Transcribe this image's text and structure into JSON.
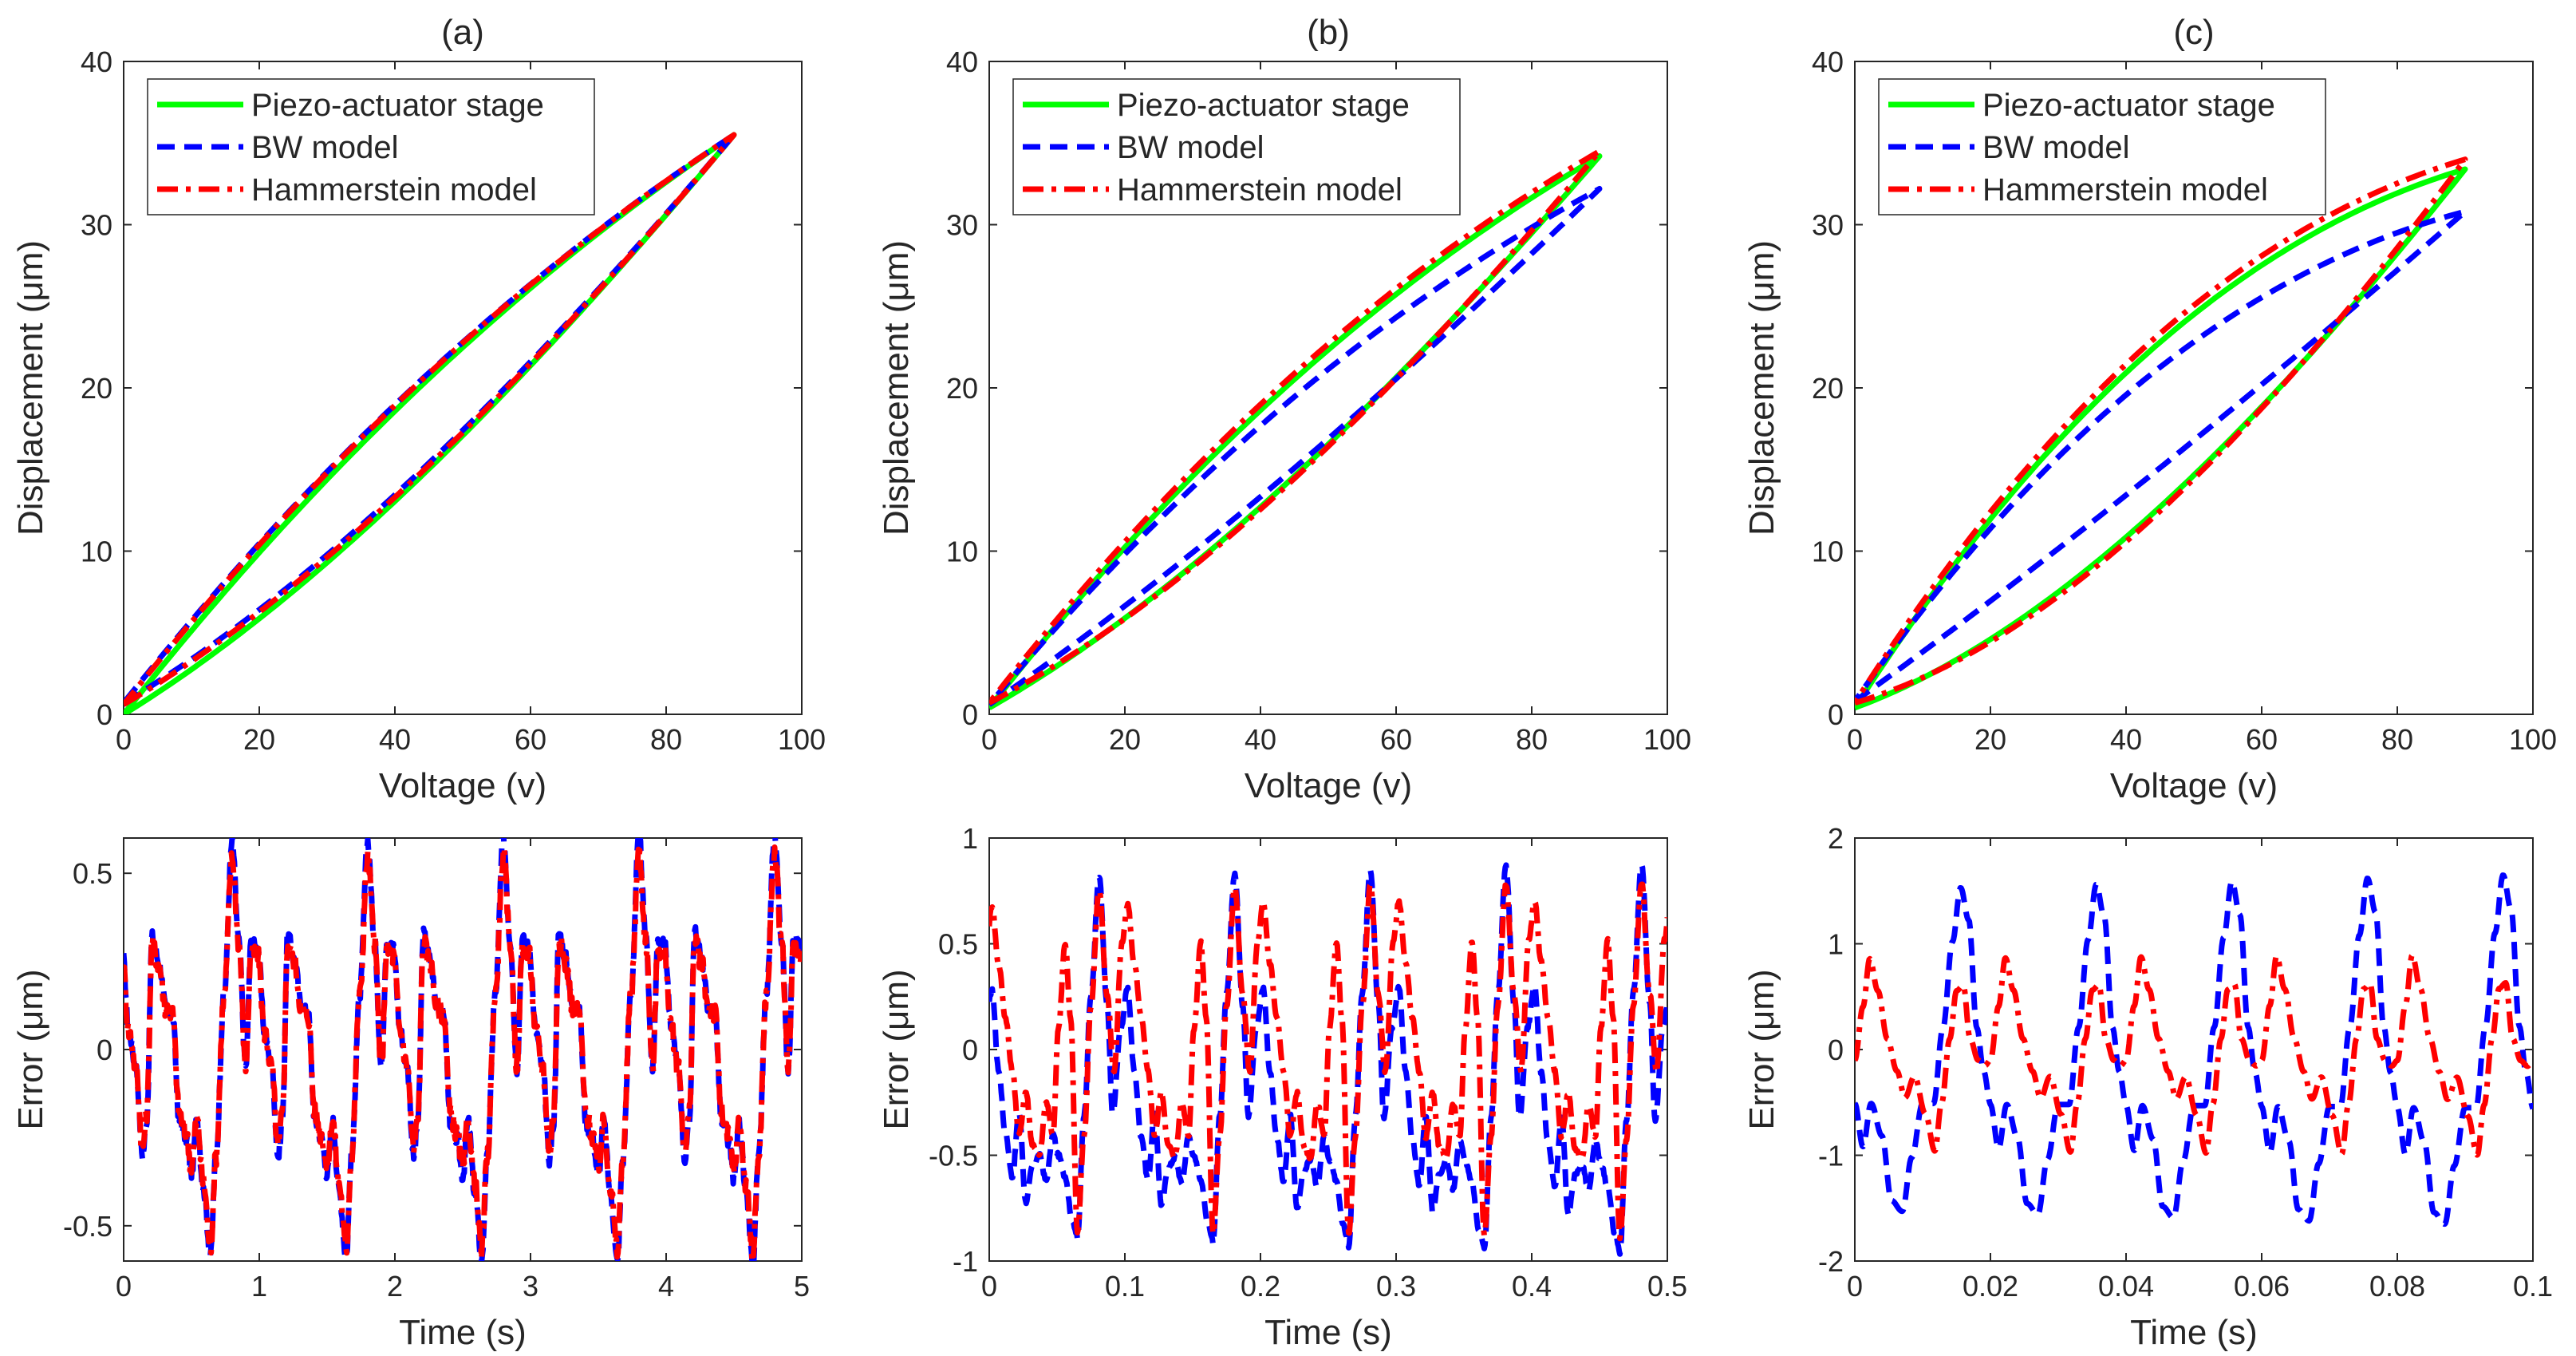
{
  "chart_data": [
    {
      "type": "line",
      "title": "(a)",
      "xlabel": "Voltage (v)",
      "ylabel": "Displacement (μm)",
      "xlim": [
        0,
        100
      ],
      "ylim": [
        0,
        40
      ],
      "xticks": [
        "0",
        "20",
        "40",
        "60",
        "80",
        "100"
      ],
      "yticks": [
        "0",
        "10",
        "20",
        "30",
        "40"
      ],
      "legend_position": "top-left",
      "legend": [
        "Piezo-actuator stage",
        "BW model",
        "Hammerstein model"
      ],
      "loop": {
        "vmax": 90,
        "start": 0.3,
        "peak": 35.5,
        "upper_bulge": 2.6,
        "lower_sag": 2.9
      },
      "series": [
        {
          "name": "Piezo-actuator stage",
          "color": "#00ff00",
          "style": "solid",
          "dx": [
            -0.3,
            0.2,
            0.0
          ]
        },
        {
          "name": "BW model",
          "color": "#0000ff",
          "style": "dashed",
          "dx": [
            0.4,
            0.2,
            0.0
          ]
        },
        {
          "name": "Hammerstein model",
          "color": "#ff0000",
          "style": "dashdot",
          "dx": [
            0.3,
            0.3,
            0.0
          ]
        }
      ]
    },
    {
      "type": "line",
      "title": "(b)",
      "xlabel": "Voltage (v)",
      "ylabel": "Displacement (μm)",
      "xlim": [
        0,
        100
      ],
      "ylim": [
        0,
        40
      ],
      "xticks": [
        "0",
        "20",
        "40",
        "60",
        "80",
        "100"
      ],
      "yticks": [
        "0",
        "10",
        "20",
        "30",
        "40"
      ],
      "legend_position": "top-left",
      "legend": [
        "Piezo-actuator stage",
        "BW model",
        "Hammerstein model"
      ],
      "loop": {
        "vmax": 90,
        "start": 0.4,
        "peak": 34.2,
        "upper_bulge": 3.0,
        "lower_sag": 3.1
      },
      "series": [
        {
          "name": "Piezo-actuator stage",
          "color": "#00ff00",
          "style": "solid",
          "dx": [
            0.0,
            0.0,
            0.0
          ]
        },
        {
          "name": "BW model",
          "color": "#0000ff",
          "style": "dashed",
          "dx": [
            0.2,
            -1.6,
            -2.0
          ]
        },
        {
          "name": "Hammerstein model",
          "color": "#ff0000",
          "style": "dashdot",
          "dx": [
            0.3,
            0.5,
            0.3
          ]
        }
      ]
    },
    {
      "type": "line",
      "title": "(c)",
      "xlabel": "Voltage (v)",
      "ylabel": "Displacement (μm)",
      "xlim": [
        0,
        100
      ],
      "ylim": [
        0,
        40
      ],
      "xticks": [
        "0",
        "20",
        "40",
        "60",
        "80",
        "100"
      ],
      "yticks": [
        "0",
        "10",
        "20",
        "30",
        "40"
      ],
      "legend_position": "top-left",
      "legend": [
        "Piezo-actuator stage",
        "BW model",
        "Hammerstein model"
      ],
      "loop": {
        "vmax": 90,
        "start": 0.4,
        "peak": 33.4,
        "upper_bulge": 5.5,
        "lower_sag": 5.0
      },
      "series": [
        {
          "name": "Piezo-actuator stage",
          "color": "#00ff00",
          "style": "solid",
          "dx": [
            0.0,
            -0.2,
            0.0
          ]
        },
        {
          "name": "BW model",
          "color": "#0000ff",
          "style": "dashed",
          "dx": [
            0.4,
            -4.2,
            -2.6
          ]
        },
        {
          "name": "Hammerstein model",
          "color": "#ff0000",
          "style": "dashdot",
          "dx": [
            0.3,
            0.6,
            0.6
          ]
        }
      ]
    },
    {
      "type": "line",
      "title": "",
      "xlabel": "Time (s)",
      "ylabel": "Error (μm)",
      "xlim": [
        0,
        5
      ],
      "ylim": [
        -0.6,
        0.6
      ],
      "yticks_values": [
        -0.5,
        0,
        0.5
      ],
      "xticks": [
        "0",
        "1",
        "2",
        "3",
        "4",
        "5"
      ],
      "yticks": [
        "-0.5",
        "0",
        "0.5"
      ],
      "period": 1,
      "cycles": 5,
      "phase0": 0.64,
      "series": [
        {
          "name": "BW model",
          "color": "#0000ff",
          "style": "dashed",
          "profile": [
            [
              0.0,
              -0.58
            ],
            [
              0.04,
              -0.3
            ],
            [
              0.1,
              0.15
            ],
            [
              0.16,
              0.58
            ],
            [
              0.21,
              0.3
            ],
            [
              0.26,
              -0.05
            ],
            [
              0.3,
              0.3
            ],
            [
              0.35,
              0.28
            ],
            [
              0.4,
              0.05
            ],
            [
              0.45,
              -0.05
            ],
            [
              0.5,
              -0.3
            ],
            [
              0.53,
              -0.2
            ],
            [
              0.57,
              0.32
            ],
            [
              0.62,
              0.25
            ],
            [
              0.67,
              0.12
            ],
            [
              0.72,
              0.1
            ],
            [
              0.77,
              -0.2
            ],
            [
              0.82,
              -0.25
            ],
            [
              0.86,
              -0.35
            ],
            [
              0.9,
              -0.2
            ],
            [
              0.95,
              -0.4
            ],
            [
              1.0,
              -0.58
            ]
          ],
          "growth": 0.012,
          "noise": 0.02
        },
        {
          "name": "Hammerstein model",
          "color": "#ff0000",
          "style": "dashdot",
          "profile": [
            [
              0.0,
              -0.56
            ],
            [
              0.04,
              -0.3
            ],
            [
              0.1,
              0.15
            ],
            [
              0.16,
              0.54
            ],
            [
              0.21,
              0.3
            ],
            [
              0.26,
              -0.05
            ],
            [
              0.3,
              0.28
            ],
            [
              0.35,
              0.26
            ],
            [
              0.4,
              0.05
            ],
            [
              0.45,
              -0.05
            ],
            [
              0.5,
              -0.28
            ],
            [
              0.53,
              -0.18
            ],
            [
              0.57,
              0.3
            ],
            [
              0.62,
              0.24
            ],
            [
              0.67,
              0.12
            ],
            [
              0.72,
              0.1
            ],
            [
              0.77,
              -0.18
            ],
            [
              0.82,
              -0.24
            ],
            [
              0.86,
              -0.33
            ],
            [
              0.9,
              -0.2
            ],
            [
              0.95,
              -0.38
            ],
            [
              1.0,
              -0.56
            ]
          ],
          "growth": 0.008,
          "noise": 0.03
        }
      ]
    },
    {
      "type": "line",
      "title": "",
      "xlabel": "Time (s)",
      "ylabel": "Error (μm)",
      "xlim": [
        0,
        0.5
      ],
      "ylim": [
        -1,
        1
      ],
      "yticks_values": [
        -1,
        -0.5,
        0,
        0.5,
        1
      ],
      "xticks": [
        "0",
        "0.1",
        "0.2",
        "0.3",
        "0.4",
        "0.5"
      ],
      "yticks": [
        "-1",
        "-0.5",
        "0",
        "0.5",
        "1"
      ],
      "period": 0.1,
      "cycles": 5,
      "phase0": 0.065,
      "series": [
        {
          "name": "BW model",
          "color": "#0000ff",
          "style": "dashed",
          "profile": [
            [
              0.0,
              -0.88
            ],
            [
              0.05,
              -0.3
            ],
            [
              0.1,
              0.25
            ],
            [
              0.16,
              0.8
            ],
            [
              0.22,
              0.2
            ],
            [
              0.26,
              -0.3
            ],
            [
              0.32,
              0.1
            ],
            [
              0.37,
              0.28
            ],
            [
              0.42,
              -0.1
            ],
            [
              0.47,
              -0.4
            ],
            [
              0.52,
              -0.6
            ],
            [
              0.57,
              -0.3
            ],
            [
              0.62,
              -0.72
            ],
            [
              0.67,
              -0.55
            ],
            [
              0.72,
              -0.5
            ],
            [
              0.77,
              -0.62
            ],
            [
              0.82,
              -0.4
            ],
            [
              0.86,
              -0.5
            ],
            [
              0.91,
              -0.6
            ],
            [
              0.96,
              -0.8
            ],
            [
              1.0,
              -0.88
            ]
          ],
          "growth": 0.02,
          "noise": 0.01
        },
        {
          "name": "Hammerstein model",
          "color": "#ff0000",
          "style": "dashdot",
          "profile": [
            [
              0.0,
              -0.85
            ],
            [
              0.05,
              -0.4
            ],
            [
              0.1,
              0.2
            ],
            [
              0.16,
              0.75
            ],
            [
              0.22,
              0.25
            ],
            [
              0.27,
              -0.1
            ],
            [
              0.33,
              0.5
            ],
            [
              0.37,
              0.68
            ],
            [
              0.42,
              0.4
            ],
            [
              0.47,
              0.15
            ],
            [
              0.52,
              -0.1
            ],
            [
              0.57,
              -0.4
            ],
            [
              0.62,
              -0.2
            ],
            [
              0.67,
              -0.45
            ],
            [
              0.72,
              -0.5
            ],
            [
              0.77,
              -0.25
            ],
            [
              0.82,
              -0.4
            ],
            [
              0.86,
              0.1
            ],
            [
              0.91,
              0.5
            ],
            [
              0.95,
              0.15
            ],
            [
              1.0,
              -0.85
            ]
          ],
          "growth": 0.01,
          "noise": 0.01
        }
      ]
    },
    {
      "type": "line",
      "title": "",
      "xlabel": "Time (s)",
      "ylabel": "Error (μm)",
      "xlim": [
        0,
        0.1
      ],
      "ylim": [
        -2,
        2
      ],
      "yticks_values": [
        -2,
        -1,
        0,
        1,
        2
      ],
      "xticks": [
        "0",
        "0.02",
        "0.04",
        "0.06",
        "0.08",
        "0.1"
      ],
      "yticks": [
        "-2",
        "-1",
        "0",
        "1",
        "2"
      ],
      "period": 0.02,
      "cycles": 5,
      "phase0": 0.0,
      "series": [
        {
          "name": "BW model",
          "color": "#0000ff",
          "style": "dashed",
          "profile": [
            [
              0.0,
              -0.5
            ],
            [
              0.06,
              -0.9
            ],
            [
              0.12,
              -0.5
            ],
            [
              0.2,
              -0.8
            ],
            [
              0.27,
              -1.4
            ],
            [
              0.35,
              -1.5
            ],
            [
              0.42,
              -1.0
            ],
            [
              0.5,
              -0.5
            ],
            [
              0.58,
              -0.5
            ],
            [
              0.65,
              0.2
            ],
            [
              0.72,
              1.0
            ],
            [
              0.78,
              1.5
            ],
            [
              0.84,
              1.2
            ],
            [
              0.9,
              0.2
            ],
            [
              0.95,
              -0.2
            ],
            [
              1.0,
              -0.5
            ]
          ],
          "growth": 0.02,
          "noise": 0.0
        },
        {
          "name": "Hammerstein model",
          "color": "#ff0000",
          "style": "dashdot",
          "profile": [
            [
              0.0,
              -0.1
            ],
            [
              0.06,
              0.4
            ],
            [
              0.11,
              0.85
            ],
            [
              0.17,
              0.55
            ],
            [
              0.24,
              0.1
            ],
            [
              0.31,
              -0.2
            ],
            [
              0.37,
              -0.45
            ],
            [
              0.44,
              -0.25
            ],
            [
              0.52,
              -0.6
            ],
            [
              0.59,
              -0.95
            ],
            [
              0.64,
              -0.5
            ],
            [
              0.7,
              0.1
            ],
            [
              0.75,
              0.55
            ],
            [
              0.8,
              0.6
            ],
            [
              0.85,
              0.1
            ],
            [
              0.91,
              -0.1
            ],
            [
              0.96,
              -0.15
            ],
            [
              1.0,
              -0.1
            ]
          ],
          "growth": 0.01,
          "noise": 0.0
        }
      ]
    }
  ]
}
